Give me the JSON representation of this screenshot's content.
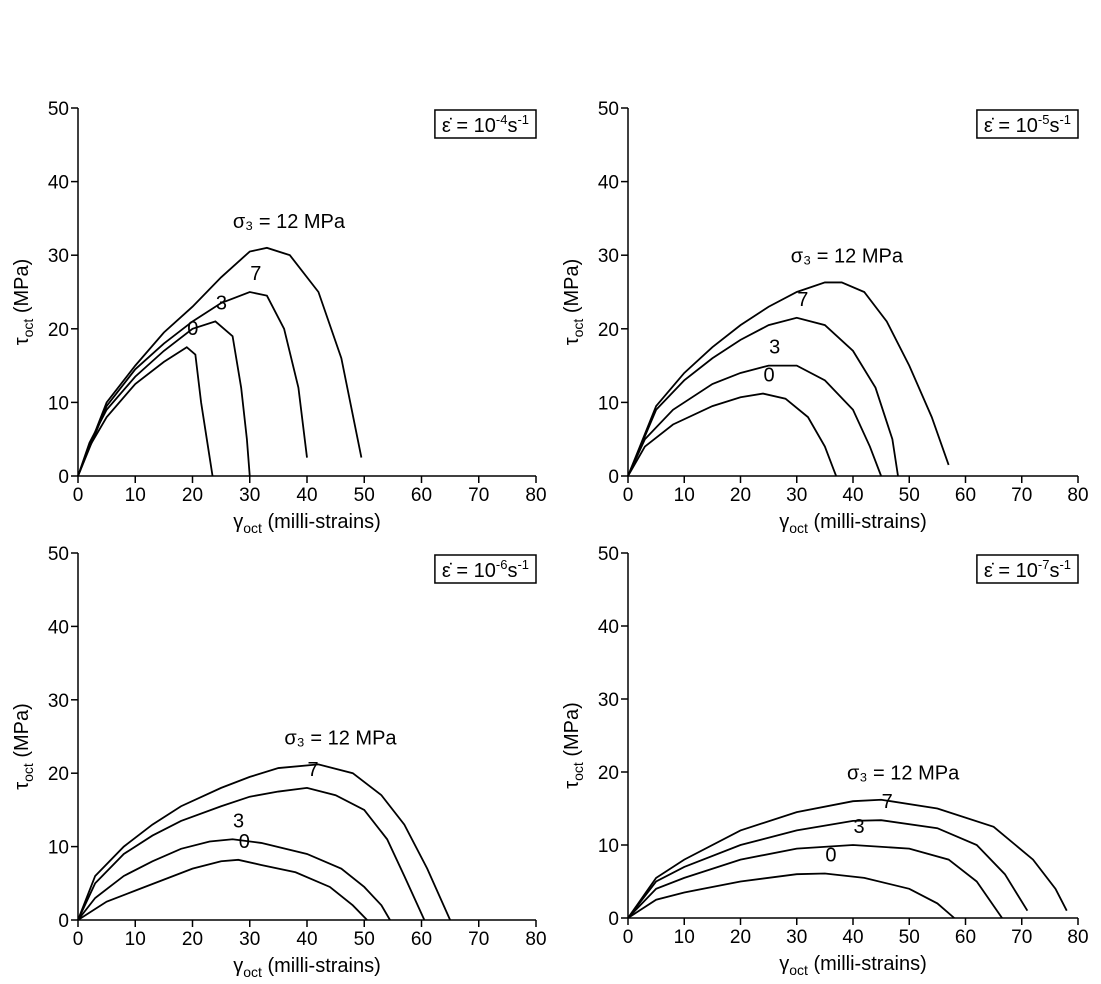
{
  "chart_data": [
    {
      "type": "line",
      "annotation": {
        "lhs": "ε̇ = 10",
        "exponent": "-4",
        "unit": "s",
        "unit_exponent": "-1"
      },
      "xlabel": {
        "symbol": "γ",
        "sub": "oct",
        "rest": " (milli-strains)"
      },
      "ylabel": {
        "symbol": "τ",
        "sub": "oct",
        "rest": " (MPa)"
      },
      "xlim": [
        0,
        80
      ],
      "ylim": [
        0,
        50
      ],
      "xticks": [
        0,
        10,
        20,
        30,
        40,
        50,
        60,
        70,
        80
      ],
      "yticks": [
        0,
        10,
        20,
        30,
        40,
        50
      ],
      "series": [
        {
          "name": "0",
          "color": "#000000",
          "x": [
            0,
            2,
            5,
            10,
            15,
            19,
            20.5,
            21.5,
            22.5,
            23.5
          ],
          "values": [
            0,
            4,
            8,
            12.5,
            15.5,
            17.5,
            16.5,
            10,
            5,
            0
          ]
        },
        {
          "name": "3",
          "color": "#000000",
          "x": [
            0,
            2,
            5,
            10,
            15,
            20,
            24,
            27,
            28.5,
            29.5,
            30
          ],
          "values": [
            0,
            4.5,
            9,
            13.5,
            17,
            20,
            21,
            19,
            12,
            5,
            0
          ]
        },
        {
          "name": "7",
          "color": "#000000",
          "x": [
            0,
            5,
            10,
            15,
            20,
            25,
            30,
            33,
            36,
            38.5,
            40
          ],
          "values": [
            0,
            9.5,
            14.5,
            18,
            21,
            23.5,
            25,
            24.5,
            20,
            12,
            2.5
          ]
        },
        {
          "name": "σ₃ = 12 MPa",
          "color": "#000000",
          "x": [
            0,
            5,
            10,
            15,
            20,
            25,
            30,
            33,
            37,
            42,
            46,
            49.5
          ],
          "values": [
            0,
            10,
            15,
            19.5,
            23,
            27,
            30.5,
            31,
            30,
            25,
            16,
            2.5
          ]
        }
      ]
    },
    {
      "type": "line",
      "annotation": {
        "lhs": "ε̇ = 10",
        "exponent": "-5",
        "unit": "s",
        "unit_exponent": "-1"
      },
      "xlabel": {
        "symbol": "γ",
        "sub": "oct",
        "rest": " (milli-strains)"
      },
      "ylabel": {
        "symbol": "τ",
        "sub": "oct",
        "rest": " (MPa)"
      },
      "xlim": [
        0,
        80
      ],
      "ylim": [
        0,
        50
      ],
      "xticks": [
        0,
        10,
        20,
        30,
        40,
        50,
        60,
        70,
        80
      ],
      "yticks": [
        0,
        10,
        20,
        30,
        40,
        50
      ],
      "series": [
        {
          "name": "0",
          "color": "#000000",
          "x": [
            0,
            3,
            8,
            15,
            20,
            24,
            28,
            32,
            35,
            36.5,
            37
          ],
          "values": [
            0,
            4,
            7,
            9.5,
            10.7,
            11.2,
            10.5,
            8,
            4,
            1,
            0
          ]
        },
        {
          "name": "3",
          "color": "#000000",
          "x": [
            0,
            3,
            8,
            15,
            20,
            25,
            30,
            35,
            40,
            43,
            45
          ],
          "values": [
            0,
            5,
            9,
            12.5,
            14,
            15,
            15,
            13,
            9,
            4,
            0
          ]
        },
        {
          "name": "7",
          "color": "#000000",
          "x": [
            0,
            5,
            10,
            15,
            20,
            25,
            30,
            35,
            40,
            44,
            47,
            48
          ],
          "values": [
            0,
            9,
            13,
            16,
            18.5,
            20.5,
            21.5,
            20.5,
            17,
            12,
            5,
            0
          ]
        },
        {
          "name": "σ₃ = 12 MPa",
          "color": "#000000",
          "x": [
            0,
            5,
            10,
            15,
            20,
            25,
            30,
            35,
            38,
            42,
            46,
            50,
            54,
            57
          ],
          "values": [
            0,
            9.5,
            14,
            17.5,
            20.5,
            23,
            25,
            26.3,
            26.3,
            25,
            21,
            15,
            8,
            1.5
          ]
        }
      ]
    },
    {
      "type": "line",
      "annotation": {
        "lhs": "ε̇ = 10",
        "exponent": "-6",
        "unit": "s",
        "unit_exponent": "-1"
      },
      "xlabel": {
        "symbol": "γ",
        "sub": "oct",
        "rest": " (milli-strains)"
      },
      "ylabel": {
        "symbol": "τ",
        "sub": "oct",
        "rest": " (MPa)"
      },
      "xlim": [
        0,
        80
      ],
      "ylim": [
        0,
        50
      ],
      "xticks": [
        0,
        10,
        20,
        30,
        40,
        50,
        60,
        70,
        80
      ],
      "yticks": [
        0,
        10,
        20,
        30,
        40,
        50
      ],
      "series": [
        {
          "name": "0",
          "color": "#000000",
          "x": [
            0,
            5,
            10,
            15,
            20,
            25,
            28,
            32,
            38,
            44,
            48,
            50.5
          ],
          "values": [
            0,
            2.5,
            4,
            5.5,
            7,
            8,
            8.2,
            7.5,
            6.5,
            4.5,
            2,
            0
          ]
        },
        {
          "name": "3",
          "color": "#000000",
          "x": [
            0,
            3,
            8,
            13,
            18,
            23,
            27,
            32,
            40,
            46,
            50,
            53,
            54.5
          ],
          "values": [
            0,
            3,
            6,
            8,
            9.7,
            10.7,
            11,
            10.5,
            9,
            7,
            4.5,
            2,
            0
          ]
        },
        {
          "name": "7",
          "color": "#000000",
          "x": [
            0,
            3,
            8,
            13,
            18,
            25,
            30,
            35,
            40,
            45,
            50,
            54,
            57,
            60.5
          ],
          "values": [
            0,
            5,
            9,
            11.5,
            13.5,
            15.5,
            16.8,
            17.5,
            18,
            17,
            15,
            11,
            6,
            0
          ]
        },
        {
          "name": "σ₃ = 12 MPa",
          "color": "#000000",
          "x": [
            0,
            3,
            8,
            13,
            18,
            25,
            30,
            35,
            42,
            48,
            53,
            57,
            61,
            65
          ],
          "values": [
            0,
            6,
            10,
            13,
            15.5,
            18,
            19.5,
            20.7,
            21.2,
            20,
            17,
            13,
            7,
            0
          ]
        }
      ]
    },
    {
      "type": "line",
      "annotation": {
        "lhs": "ε̇ = 10",
        "exponent": "-7",
        "unit": "s",
        "unit_exponent": "-1"
      },
      "xlabel": {
        "symbol": "γ",
        "sub": "oct",
        "rest": " (milli-strains)"
      },
      "ylabel": {
        "symbol": "τ",
        "sub": "oct",
        "rest": " (MPa)"
      },
      "xlim": [
        0,
        80
      ],
      "ylim": [
        0,
        50
      ],
      "xticks": [
        0,
        10,
        20,
        30,
        40,
        50,
        60,
        70,
        80
      ],
      "yticks": [
        0,
        10,
        20,
        30,
        40,
        50
      ],
      "series": [
        {
          "name": "0",
          "color": "#000000",
          "x": [
            0,
            5,
            10,
            20,
            30,
            35,
            42,
            50,
            55,
            58
          ],
          "values": [
            0,
            2.5,
            3.5,
            5,
            6,
            6.1,
            5.5,
            4,
            2,
            0
          ]
        },
        {
          "name": "3",
          "color": "#000000",
          "x": [
            0,
            5,
            10,
            20,
            30,
            40,
            50,
            57,
            62,
            66.5
          ],
          "values": [
            0,
            4,
            5.5,
            8,
            9.5,
            10,
            9.5,
            8,
            5,
            0
          ]
        },
        {
          "name": "7",
          "color": "#000000",
          "x": [
            0,
            5,
            10,
            20,
            30,
            40,
            45,
            55,
            62,
            67,
            71
          ],
          "values": [
            0,
            5,
            7,
            10,
            12,
            13.3,
            13.4,
            12.3,
            10,
            6,
            1
          ]
        },
        {
          "name": "σ₃ = 12 MPa",
          "color": "#000000",
          "x": [
            0,
            5,
            10,
            20,
            30,
            40,
            45,
            55,
            65,
            72,
            76,
            78
          ],
          "values": [
            0,
            5.5,
            8,
            12,
            14.5,
            16,
            16.2,
            15,
            12.5,
            8,
            4,
            1
          ]
        }
      ]
    }
  ]
}
